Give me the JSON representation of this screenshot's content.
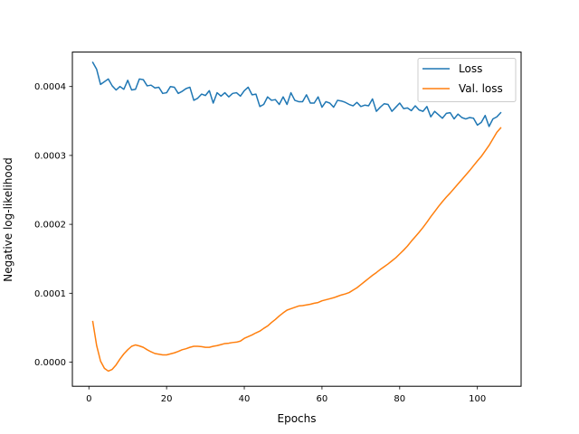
{
  "chart_data": {
    "type": "line",
    "title": "",
    "xlabel": "Epochs",
    "ylabel": "Negative log-likelihood",
    "xlim": [
      -4.25,
      111.25
    ],
    "ylim": [
      -3.5e-05,
      0.00045
    ],
    "x_ticks": [
      0,
      20,
      40,
      60,
      80,
      100
    ],
    "x_tick_labels": [
      "0",
      "20",
      "40",
      "60",
      "80",
      "100"
    ],
    "y_ticks": [
      0.0,
      0.0001,
      0.0002,
      0.0003,
      0.0004
    ],
    "y_tick_labels": [
      "0.0000",
      "0.0001",
      "0.0002",
      "0.0003",
      "0.0004"
    ],
    "grid": false,
    "legend_position": "top-right",
    "x": [
      1,
      2,
      3,
      4,
      5,
      6,
      7,
      8,
      9,
      10,
      11,
      12,
      13,
      14,
      15,
      16,
      17,
      18,
      19,
      20,
      21,
      22,
      23,
      24,
      25,
      26,
      27,
      28,
      29,
      30,
      31,
      32,
      33,
      34,
      35,
      36,
      37,
      38,
      39,
      40,
      41,
      42,
      43,
      44,
      45,
      46,
      47,
      48,
      49,
      50,
      51,
      52,
      53,
      54,
      55,
      56,
      57,
      58,
      59,
      60,
      61,
      62,
      63,
      64,
      65,
      66,
      67,
      68,
      69,
      70,
      71,
      72,
      73,
      74,
      75,
      76,
      77,
      78,
      79,
      80,
      81,
      82,
      83,
      84,
      85,
      86,
      87,
      88,
      89,
      90,
      91,
      92,
      93,
      94,
      95,
      96,
      97,
      98,
      99,
      100,
      101,
      102,
      103,
      104,
      105,
      106
    ],
    "series": [
      {
        "name": "Loss",
        "color": "#1f77b4",
        "values": [
          0.000435,
          0.000425,
          0.000403,
          0.000407,
          0.000411,
          0.000401,
          0.000395,
          0.0004,
          0.000396,
          0.000409,
          0.000395,
          0.000396,
          0.000411,
          0.00041,
          0.000401,
          0.000402,
          0.000398,
          0.000399,
          0.00039,
          0.000391,
          0.0004,
          0.000399,
          0.00039,
          0.000393,
          0.000397,
          0.000399,
          0.00038,
          0.000383,
          0.000389,
          0.000387,
          0.000394,
          0.000376,
          0.000391,
          0.000386,
          0.000391,
          0.000385,
          0.00039,
          0.000391,
          0.000386,
          0.000394,
          0.000399,
          0.000388,
          0.000389,
          0.000371,
          0.000374,
          0.000385,
          0.00038,
          0.000381,
          0.000374,
          0.000385,
          0.000374,
          0.000391,
          0.00038,
          0.000378,
          0.000378,
          0.000388,
          0.000376,
          0.000376,
          0.000385,
          0.00037,
          0.000378,
          0.000376,
          0.00037,
          0.00038,
          0.000379,
          0.000377,
          0.000374,
          0.000372,
          0.000377,
          0.000371,
          0.000373,
          0.000372,
          0.000382,
          0.000364,
          0.00037,
          0.000375,
          0.000374,
          0.000364,
          0.00037,
          0.000376,
          0.000368,
          0.000369,
          0.000365,
          0.000372,
          0.000366,
          0.000364,
          0.000371,
          0.000356,
          0.000364,
          0.000359,
          0.000354,
          0.000361,
          0.000362,
          0.000353,
          0.00036,
          0.000355,
          0.000353,
          0.000355,
          0.000354,
          0.000344,
          0.000348,
          0.000358,
          0.000342,
          0.000353,
          0.000356,
          0.000362
        ]
      },
      {
        "name": "Val. loss",
        "color": "#ff7f0e",
        "values": [
          5.9e-05,
          2.4e-05,
          1.5e-06,
          -9e-06,
          -1.3e-05,
          -1.05e-05,
          -4e-06,
          4.5e-06,
          1.2e-05,
          1.8e-05,
          2.3e-05,
          2.5e-05,
          2.35e-05,
          2.15e-05,
          1.8e-05,
          1.5e-05,
          1.25e-05,
          1.15e-05,
          1.05e-05,
          1.05e-05,
          1.2e-05,
          1.35e-05,
          1.55e-05,
          1.8e-05,
          1.95e-05,
          2.15e-05,
          2.3e-05,
          2.3e-05,
          2.25e-05,
          2.15e-05,
          2.15e-05,
          2.3e-05,
          2.4e-05,
          2.55e-05,
          2.7e-05,
          2.75e-05,
          2.85e-05,
          2.9e-05,
          3.05e-05,
          3.45e-05,
          3.7e-05,
          3.95e-05,
          4.25e-05,
          4.5e-05,
          4.9e-05,
          5.25e-05,
          5.75e-05,
          6.2e-05,
          6.7e-05,
          7.15e-05,
          7.55e-05,
          7.75e-05,
          7.95e-05,
          8.15e-05,
          8.2e-05,
          8.3e-05,
          8.4e-05,
          8.55e-05,
          8.65e-05,
          8.9e-05,
          9.05e-05,
          9.2e-05,
          9.35e-05,
          9.55e-05,
          9.75e-05,
          9.9e-05,
          0.000101,
          0.0001045,
          0.000108,
          0.0001125,
          0.000117,
          0.0001215,
          0.000126,
          0.00013,
          0.0001345,
          0.0001385,
          0.0001425,
          0.000147,
          0.0001515,
          0.000157,
          0.0001625,
          0.0001685,
          0.0001755,
          0.000182,
          0.0001885,
          0.0001955,
          0.000203,
          0.000211,
          0.0002185,
          0.000226,
          0.000233,
          0.0002395,
          0.0002455,
          0.000252,
          0.0002585,
          0.000265,
          0.0002715,
          0.000278,
          0.000285,
          0.000292,
          0.0002985,
          0.0003065,
          0.0003145,
          0.000324,
          0.0003335,
          0.00034
        ]
      }
    ]
  }
}
